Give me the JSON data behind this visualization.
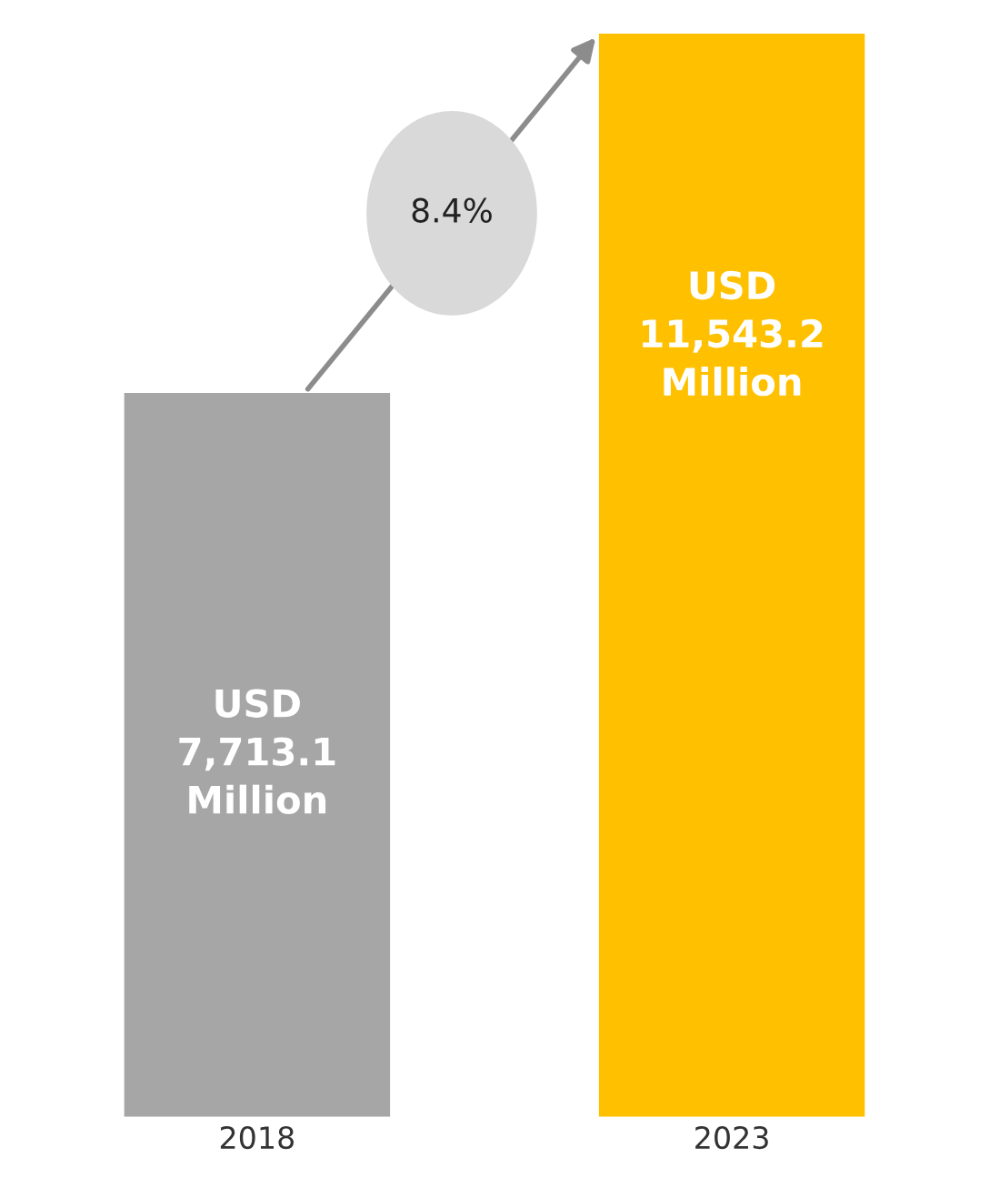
{
  "chart_data": {
    "type": "bar",
    "categories": [
      "2018",
      "2023"
    ],
    "values": [
      7713.1,
      11543.2
    ],
    "colors": [
      "#a6a6a6",
      "#ffc000"
    ],
    "value_labels": [
      "USD\n7,713.1\nMillion",
      "USD\n11,543.2\nMillion"
    ],
    "annotations": [
      "8.4%"
    ]
  }
}
